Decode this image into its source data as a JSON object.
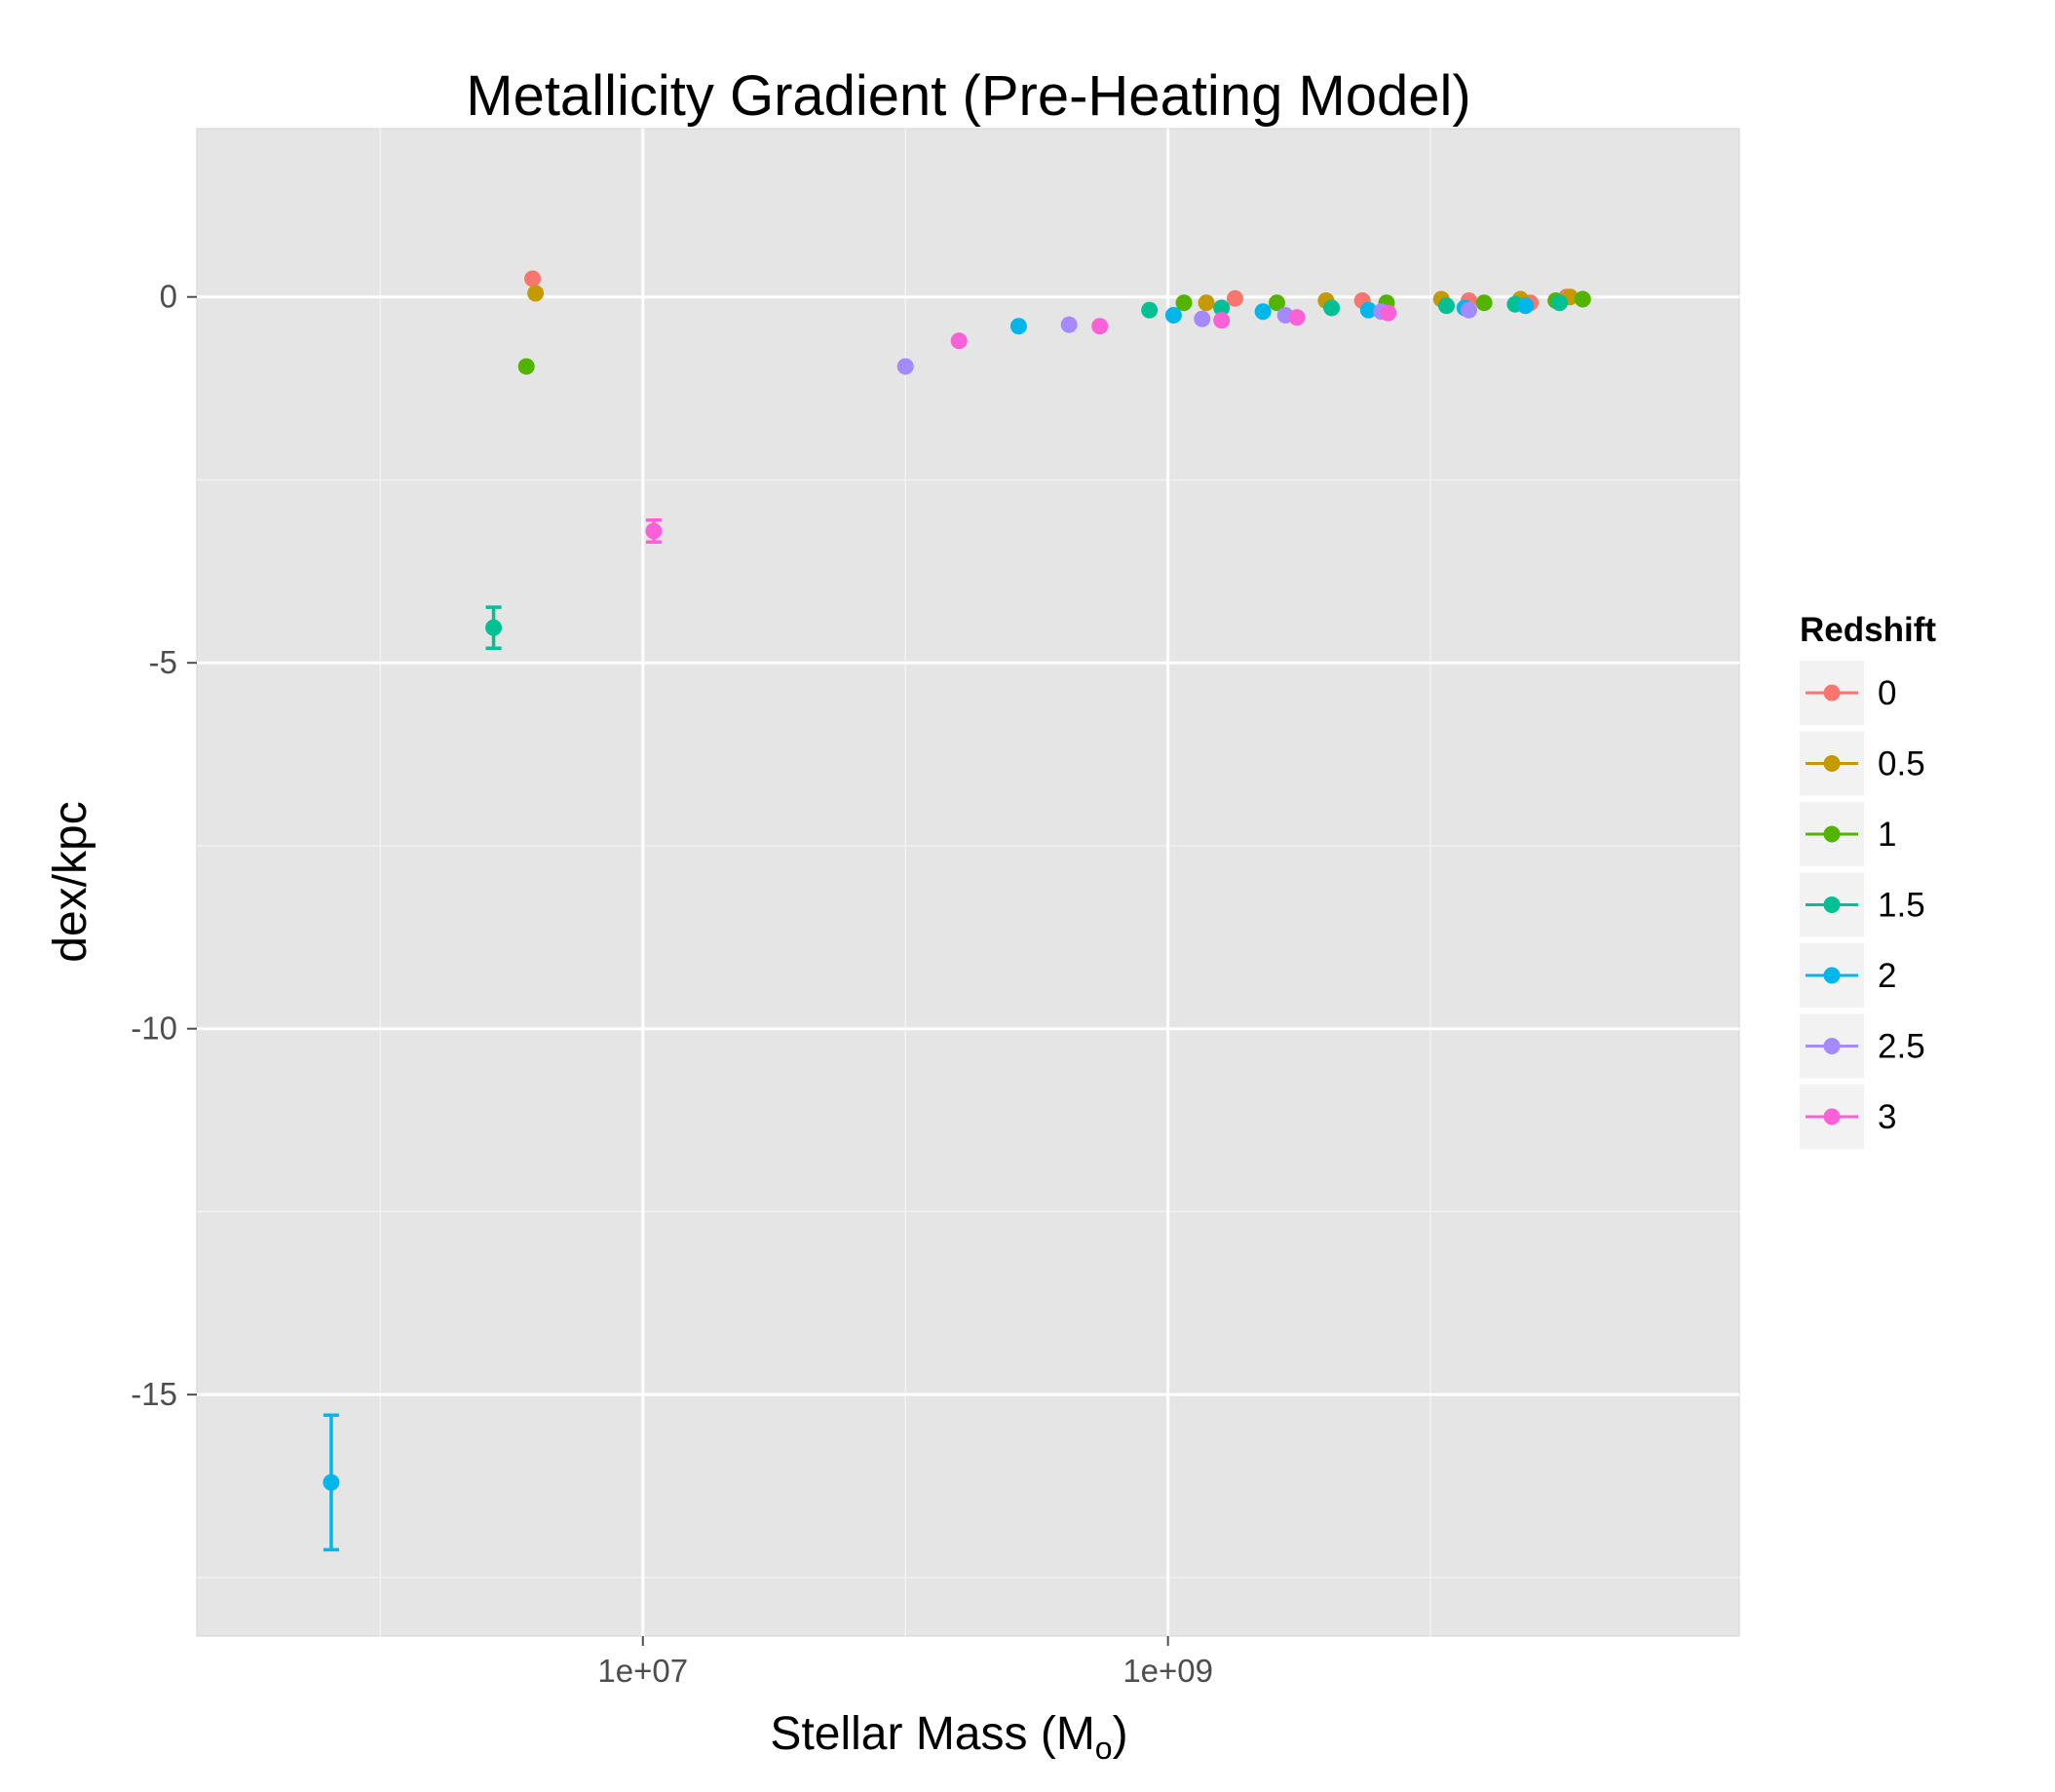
{
  "chart_data": {
    "type": "scatter",
    "title": "Metallicity Gradient (Pre-Heating Model)",
    "xlabel": "Stellar Mass (M",
    "xlabel_subscript": "o",
    "xlabel_suffix": ")",
    "ylabel": "dex/kpc",
    "x_scale": "log10",
    "xlim": [
      200000,
      150000000000
    ],
    "ylim": [
      -18.3,
      2.3
    ],
    "x_ticks": [
      {
        "value": 10000000,
        "label": "1e+07"
      },
      {
        "value": 1000000000,
        "label": "1e+09"
      }
    ],
    "y_ticks": [
      {
        "value": 0,
        "label": "0"
      },
      {
        "value": -5,
        "label": "-5"
      },
      {
        "value": -10,
        "label": "-10"
      },
      {
        "value": -15,
        "label": "-15"
      }
    ],
    "grid": true,
    "legend_title": "Redshift",
    "legend_position": "right",
    "series": [
      {
        "name": "0",
        "color": "#F8766D",
        "points": [
          {
            "x": 3800000,
            "y": 0.25
          },
          {
            "x": 1800000000,
            "y": -0.02
          },
          {
            "x": 5500000000,
            "y": -0.05
          },
          {
            "x": 14000000000,
            "y": -0.05
          },
          {
            "x": 24000000000,
            "y": -0.08
          },
          {
            "x": 33000000000,
            "y": 0.0
          }
        ]
      },
      {
        "name": "0.5",
        "color": "#C49A00",
        "points": [
          {
            "x": 3900000,
            "y": 0.05
          },
          {
            "x": 1400000000,
            "y": -0.08
          },
          {
            "x": 4000000000,
            "y": -0.05
          },
          {
            "x": 11000000000,
            "y": -0.03
          },
          {
            "x": 22000000000,
            "y": -0.03
          },
          {
            "x": 34000000000,
            "y": 0.0
          }
        ]
      },
      {
        "name": "1",
        "color": "#53B400",
        "points": [
          {
            "x": 3600000,
            "y": -0.95
          },
          {
            "x": 1150000000,
            "y": -0.08
          },
          {
            "x": 2600000000,
            "y": -0.08
          },
          {
            "x": 6800000000,
            "y": -0.08
          },
          {
            "x": 16000000000,
            "y": -0.08
          },
          {
            "x": 30000000000,
            "y": -0.05
          },
          {
            "x": 38000000000,
            "y": -0.03
          }
        ]
      },
      {
        "name": "1.5",
        "color": "#00C094",
        "points": [
          {
            "x": 2700000,
            "y": -4.52,
            "err": 0.28
          },
          {
            "x": 850000000,
            "y": -0.18
          },
          {
            "x": 1600000000,
            "y": -0.15
          },
          {
            "x": 4200000000,
            "y": -0.15
          },
          {
            "x": 11500000000,
            "y": -0.12
          },
          {
            "x": 21000000000,
            "y": -0.1
          },
          {
            "x": 31000000000,
            "y": -0.08
          }
        ]
      },
      {
        "name": "2",
        "color": "#00B6EB",
        "points": [
          {
            "x": 650000,
            "y": -16.2,
            "err": 0.92
          },
          {
            "x": 270000000,
            "y": -0.4
          },
          {
            "x": 1050000000,
            "y": -0.25
          },
          {
            "x": 2300000000,
            "y": -0.2
          },
          {
            "x": 5800000000,
            "y": -0.18
          },
          {
            "x": 13500000000,
            "y": -0.15
          },
          {
            "x": 23000000000,
            "y": -0.12
          }
        ]
      },
      {
        "name": "2.5",
        "color": "#A58AFF",
        "points": [
          {
            "x": 100000000,
            "y": -0.95
          },
          {
            "x": 420000000,
            "y": -0.38
          },
          {
            "x": 1350000000,
            "y": -0.3
          },
          {
            "x": 2800000000,
            "y": -0.25
          },
          {
            "x": 6500000000,
            "y": -0.2
          },
          {
            "x": 14000000000,
            "y": -0.18
          }
        ]
      },
      {
        "name": "3",
        "color": "#FB61D7",
        "points": [
          {
            "x": 11000000,
            "y": -3.2,
            "err": 0.15
          },
          {
            "x": 160000000,
            "y": -0.6
          },
          {
            "x": 550000000,
            "y": -0.4
          },
          {
            "x": 1600000000,
            "y": -0.32
          },
          {
            "x": 3100000000,
            "y": -0.28
          },
          {
            "x": 6900000000,
            "y": -0.22
          }
        ]
      }
    ]
  }
}
